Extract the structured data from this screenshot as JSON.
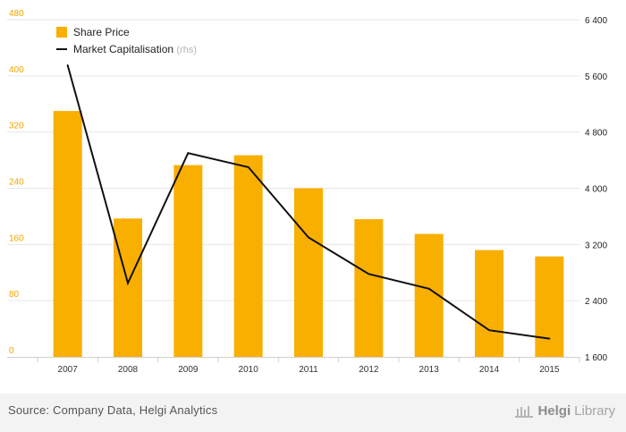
{
  "chart_data": {
    "type": "bar",
    "categories": [
      "2007",
      "2008",
      "2009",
      "2010",
      "2011",
      "2012",
      "2013",
      "2014",
      "2015"
    ],
    "series": [
      {
        "name": "Share Price",
        "type": "bar",
        "axis": "left",
        "values": [
          350,
          197,
          273,
          287,
          240,
          196,
          175,
          152,
          143
        ]
      },
      {
        "name": "Market Capitalisation",
        "name_suffix": "(rhs)",
        "type": "line",
        "axis": "right",
        "values": [
          5750,
          2650,
          4500,
          4300,
          3300,
          2780,
          2570,
          1980,
          1860
        ]
      }
    ],
    "y_left": {
      "min": 0,
      "max": 480,
      "ticks": [
        "0",
        "80",
        "160",
        "240",
        "320",
        "400",
        "480"
      ]
    },
    "y_right": {
      "min": 1600,
      "max": 6400,
      "ticks": [
        "1 600",
        "2 400",
        "3 200",
        "4 000",
        "4 800",
        "5 600",
        "6 400"
      ]
    },
    "grid": true,
    "legend_position": "top-left",
    "colors": {
      "bar": "#f9af00",
      "line": "#111111",
      "left_axis_text": "#f0a500",
      "grid": "#e6e6e6"
    }
  },
  "footer": {
    "source": "Source: Company Data, Helgi Analytics",
    "brand_part1": "Helgi",
    "brand_part2": "Library"
  }
}
